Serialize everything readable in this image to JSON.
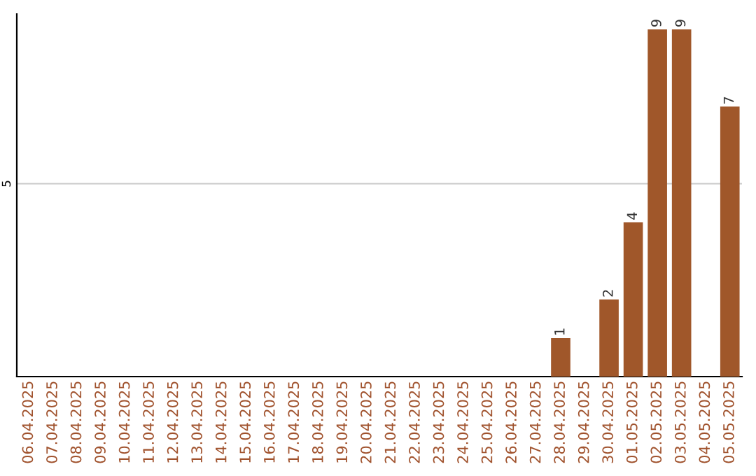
{
  "chart_data": {
    "type": "bar",
    "categories": [
      "06.04.2025",
      "07.04.2025",
      "08.04.2025",
      "09.04.2025",
      "10.04.2025",
      "11.04.2025",
      "12.04.2025",
      "13.04.2025",
      "14.04.2025",
      "15.04.2025",
      "16.04.2025",
      "17.04.2025",
      "18.04.2025",
      "19.04.2025",
      "20.04.2025",
      "21.04.2025",
      "22.04.2025",
      "23.04.2025",
      "24.04.2025",
      "25.04.2025",
      "26.04.2025",
      "27.04.2025",
      "28.04.2025",
      "29.04.2025",
      "30.04.2025",
      "01.05.2025",
      "02.05.2025",
      "03.05.2025",
      "04.05.2025",
      "05.05.2025"
    ],
    "series": [
      {
        "color": "#a0572a",
        "values": [
          null,
          null,
          null,
          null,
          null,
          null,
          null,
          null,
          null,
          null,
          null,
          null,
          null,
          null,
          null,
          null,
          null,
          null,
          null,
          null,
          null,
          null,
          1,
          null,
          2,
          4,
          9,
          9,
          null,
          7
        ]
      }
    ],
    "ylim": [
      0,
      9.4
    ],
    "yticks": [
      5
    ],
    "grid": "y",
    "data_labels": true
  }
}
